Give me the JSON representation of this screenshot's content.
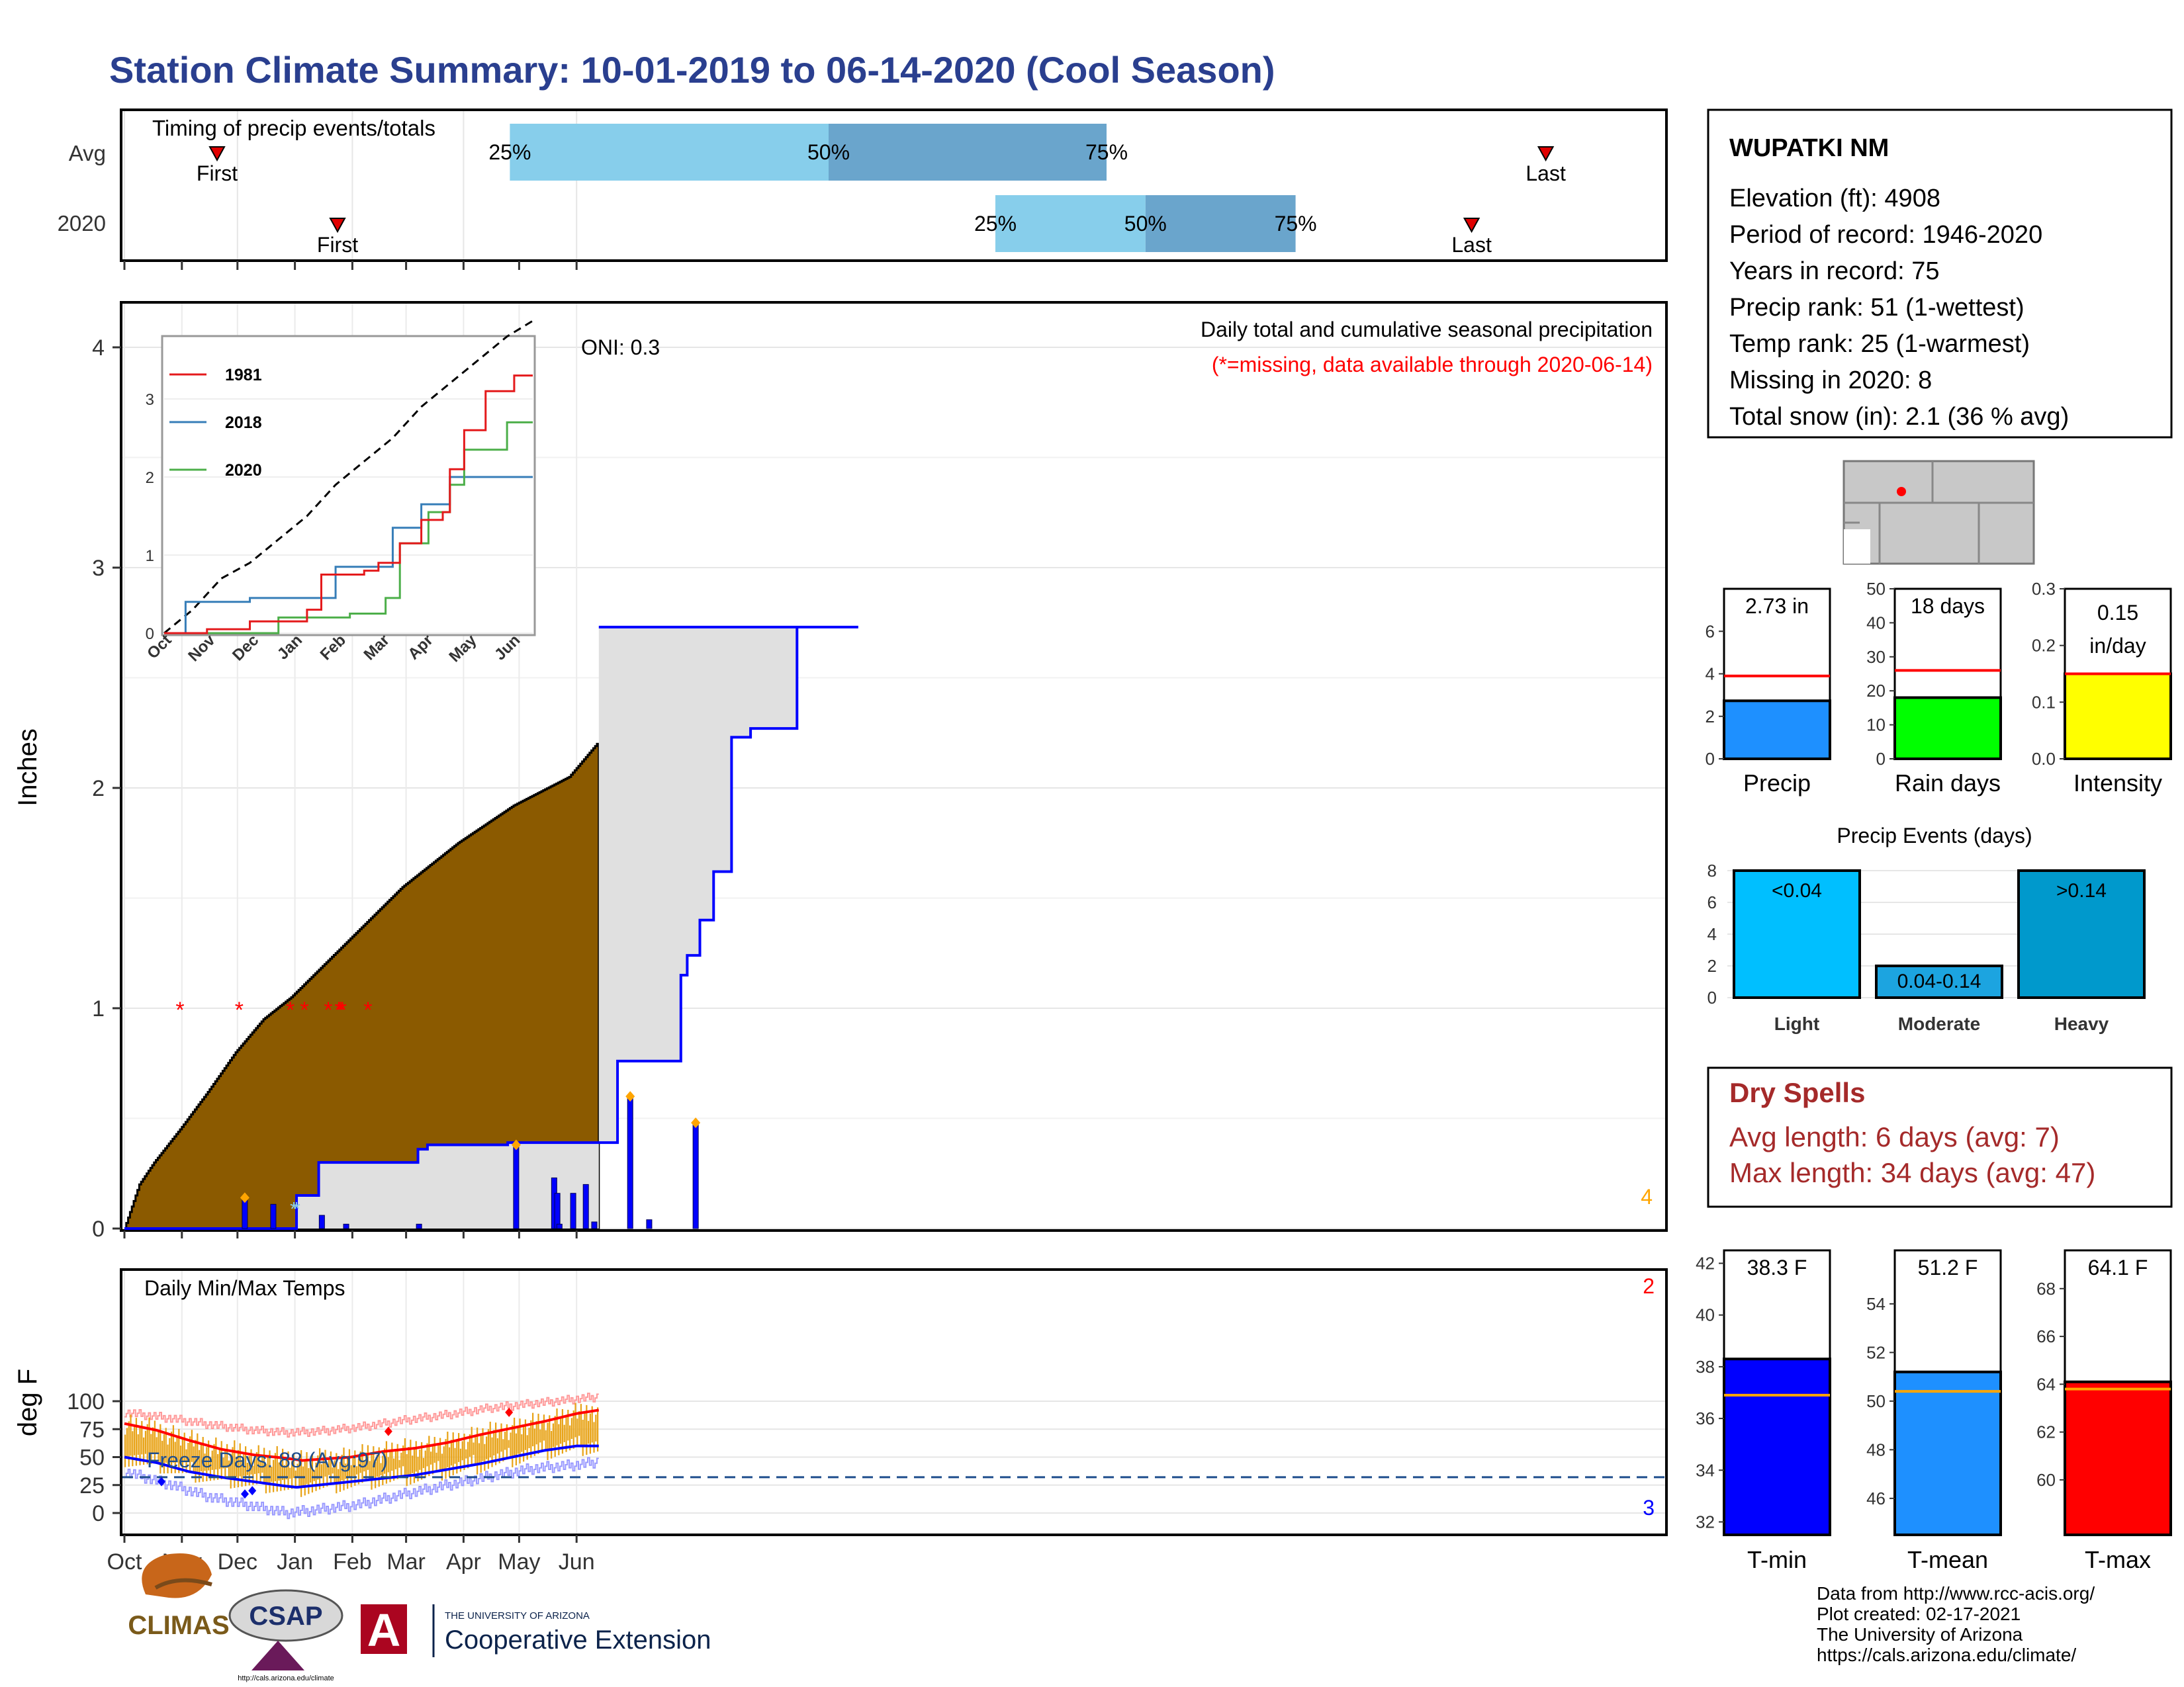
{
  "title": "Station Climate Summary: 10-01-2019 to 06-14-2020 (Cool Season)",
  "colors": {
    "title": "#2a3f8f",
    "precip_fill": "#8b5a00",
    "missing_star": "#ff0000",
    "daily_bar": "#0000ff",
    "avg_cum_line": "#0000ff",
    "avg_cum_fill": "#e0e0e0",
    "temp_bar": "#e8a317",
    "avg_max": "#ff0000",
    "avg_min": "#0000ff",
    "record_max": "#ff9999",
    "record_min": "#9999ff",
    "freeze_line": "#1f4e8c",
    "q_light": "#87ceeb",
    "q_dark": "#6aa5cc",
    "precip_box": "#1e90ff",
    "rain_days_box": "#00ff00",
    "intensity_box": "#ffff00",
    "light_bar": "#00bfff",
    "moderate_bar": "#1ca4e0",
    "heavy_bar": "#0099cc",
    "dry_spells": "#a52a2a",
    "tmin_box": "#0000ff",
    "tmean_box": "#1e90ff",
    "tmax_box": "#ff0000",
    "normal_line": "#ffa500",
    "series_1981": "#e41a1c",
    "series_2018": "#377eb8",
    "series_2020": "#4daf4a"
  },
  "months": [
    "Oct",
    "Nov",
    "Dec",
    "Jan",
    "Feb",
    "Mar",
    "Apr",
    "May",
    "Jun"
  ],
  "timing": {
    "title": "Timing of precip events/totals",
    "rows": [
      {
        "label": "Avg",
        "first_day": 50,
        "last_day": 767,
        "q25_day": 208,
        "q50_day": 380,
        "q75_day": 530,
        "first_label": "First",
        "last_label": "Last",
        "q25_label": "25%",
        "q50_label": "50%",
        "q75_label": "75%"
      },
      {
        "label": "2020",
        "first_day": 115,
        "last_day": 727,
        "q25_day": 470,
        "q50_day": 551,
        "q75_day": 632,
        "first_label": "First",
        "last_label": "Last",
        "q25_label": "25%",
        "q50_label": "50%",
        "q75_label": "75%"
      }
    ]
  },
  "precip_panel": {
    "ylabel": "Inches",
    "yticks": [
      "0",
      "1",
      "2",
      "3",
      "4"
    ],
    "oni": "ONI: 0.3",
    "note1": "Daily total and cumulative seasonal precipitation",
    "note2": "(*=missing, data available through 2020-06-14)",
    "corner_count": "4",
    "cum_points": [
      [
        0,
        0
      ],
      [
        8,
        0.2
      ],
      [
        16,
        0.3
      ],
      [
        30,
        0.45
      ],
      [
        45,
        0.62
      ],
      [
        60,
        0.8
      ],
      [
        75,
        0.95
      ],
      [
        90,
        1.05
      ],
      [
        120,
        1.3
      ],
      [
        150,
        1.55
      ],
      [
        180,
        1.75
      ],
      [
        210,
        1.92
      ],
      [
        240,
        2.05
      ],
      [
        260,
        2.25
      ],
      [
        275,
        2.35
      ],
      [
        300,
        2.58
      ],
      [
        330,
        2.72
      ],
      [
        360,
        2.98
      ],
      [
        390,
        3.22
      ],
      [
        420,
        3.4
      ],
      [
        450,
        3.55
      ],
      [
        480,
        3.7
      ],
      [
        510,
        3.76
      ],
      [
        540,
        3.82
      ],
      [
        568,
        3.88
      ],
      [
        574,
        3.92
      ]
    ],
    "avg_cum_steps": [
      [
        0,
        0
      ],
      [
        163,
        0.15
      ],
      [
        184,
        0.3
      ],
      [
        278,
        0.36
      ],
      [
        287,
        0.38
      ],
      [
        363,
        0.39
      ],
      [
        467,
        0.39
      ],
      [
        467,
        0.76
      ],
      [
        525,
        0.76
      ],
      [
        527,
        1.15
      ],
      [
        533,
        1.24
      ],
      [
        545,
        1.24
      ],
      [
        545,
        1.4
      ],
      [
        558,
        1.4
      ],
      [
        558,
        1.62
      ],
      [
        575,
        1.62
      ],
      [
        575,
        2.23
      ],
      [
        593,
        2.23
      ],
      [
        593,
        2.27
      ],
      [
        637,
        2.27
      ],
      [
        637,
        2.73
      ],
      [
        695,
        2.73
      ]
    ],
    "daily_bars": [
      [
        114,
        0.14
      ],
      [
        141,
        0.11
      ],
      [
        187,
        0.06
      ],
      [
        210,
        0.02
      ],
      [
        279,
        0.02
      ],
      [
        371,
        0.38
      ],
      [
        407,
        0.23
      ],
      [
        410,
        0.16
      ],
      [
        412,
        0.02
      ],
      [
        425,
        0.16
      ],
      [
        437,
        0.2
      ],
      [
        445,
        0.03
      ],
      [
        479,
        0.6
      ],
      [
        497,
        0.04
      ],
      [
        541,
        0.48
      ]
    ],
    "event_marks": [
      114,
      371,
      479,
      541
    ],
    "missing_days": [
      63,
      130,
      188,
      204,
      231,
      243,
      245,
      247,
      276
    ],
    "snow_days": [
      192,
      195
    ]
  },
  "inset": {
    "ticks": [
      "0",
      "1",
      "2",
      "3"
    ],
    "months": [
      "Oct",
      "Nov",
      "Dec",
      "Jan",
      "Feb",
      "Mar",
      "Apr",
      "May",
      "Jun"
    ],
    "legend": [
      "1981",
      "2018",
      "2020"
    ],
    "avg_line": [
      [
        0,
        0
      ],
      [
        20,
        0.3
      ],
      [
        40,
        0.7
      ],
      [
        60,
        0.9
      ],
      [
        80,
        1.2
      ],
      [
        100,
        1.5
      ],
      [
        120,
        1.9
      ],
      [
        140,
        2.2
      ],
      [
        160,
        2.5
      ],
      [
        180,
        2.9
      ],
      [
        200,
        3.2
      ],
      [
        220,
        3.5
      ],
      [
        240,
        3.8
      ],
      [
        258,
        4.0
      ]
    ],
    "s1981": [
      [
        0,
        0
      ],
      [
        30,
        0.05
      ],
      [
        60,
        0.15
      ],
      [
        100,
        0.3
      ],
      [
        110,
        0.75
      ],
      [
        140,
        0.8
      ],
      [
        150,
        0.9
      ],
      [
        165,
        1.15
      ],
      [
        180,
        1.45
      ],
      [
        195,
        1.55
      ],
      [
        200,
        2.1
      ],
      [
        210,
        2.6
      ],
      [
        225,
        3.1
      ],
      [
        245,
        3.3
      ],
      [
        258,
        3.3
      ]
    ],
    "s2018": [
      [
        0,
        0
      ],
      [
        15,
        0.4
      ],
      [
        60,
        0.45
      ],
      [
        100,
        0.45
      ],
      [
        120,
        0.85
      ],
      [
        160,
        1.35
      ],
      [
        180,
        1.65
      ],
      [
        200,
        2.0
      ],
      [
        258,
        2.0
      ]
    ],
    "s2020": [
      [
        0,
        0
      ],
      [
        80,
        0.2
      ],
      [
        130,
        0.25
      ],
      [
        155,
        0.45
      ],
      [
        165,
        1.15
      ],
      [
        185,
        1.55
      ],
      [
        200,
        1.9
      ],
      [
        210,
        2.35
      ],
      [
        240,
        2.7
      ],
      [
        258,
        2.7
      ]
    ]
  },
  "temp_panel": {
    "title": "Daily Min/Max Temps",
    "ylabel": "deg F",
    "yticks": [
      "0",
      "25",
      "50",
      "75",
      "100"
    ],
    "freeze_label": "Freeze Days: 88 (Avg:97)",
    "freeze_temp": 32,
    "record_high_count": "2",
    "record_low_count": "3",
    "avg_max": [
      [
        0,
        80
      ],
      [
        30,
        74
      ],
      [
        60,
        65
      ],
      [
        90,
        57
      ],
      [
        120,
        52
      ],
      [
        150,
        49
      ],
      [
        165,
        47
      ],
      [
        180,
        48
      ],
      [
        210,
        50
      ],
      [
        240,
        55
      ],
      [
        270,
        58
      ],
      [
        300,
        63
      ],
      [
        330,
        70
      ],
      [
        360,
        76
      ],
      [
        390,
        82
      ],
      [
        420,
        89
      ],
      [
        440,
        92
      ]
    ],
    "avg_min": [
      [
        0,
        50
      ],
      [
        30,
        45
      ],
      [
        60,
        37
      ],
      [
        90,
        32
      ],
      [
        120,
        28
      ],
      [
        150,
        24
      ],
      [
        160,
        23
      ],
      [
        180,
        25
      ],
      [
        210,
        28
      ],
      [
        240,
        31
      ],
      [
        270,
        34
      ],
      [
        300,
        39
      ],
      [
        330,
        44
      ],
      [
        360,
        50
      ],
      [
        390,
        56
      ],
      [
        420,
        60
      ],
      [
        440,
        60
      ]
    ],
    "rec_max": [
      [
        0,
        90
      ],
      [
        40,
        85
      ],
      [
        80,
        79
      ],
      [
        120,
        74
      ],
      [
        150,
        72
      ],
      [
        180,
        73
      ],
      [
        220,
        77
      ],
      [
        260,
        83
      ],
      [
        300,
        88
      ],
      [
        340,
        94
      ],
      [
        380,
        98
      ],
      [
        420,
        102
      ],
      [
        440,
        104
      ]
    ],
    "rec_min": [
      [
        0,
        37
      ],
      [
        40,
        26
      ],
      [
        80,
        14
      ],
      [
        120,
        6
      ],
      [
        150,
        0
      ],
      [
        180,
        3
      ],
      [
        220,
        8
      ],
      [
        260,
        17
      ],
      [
        300,
        25
      ],
      [
        340,
        33
      ],
      [
        380,
        40
      ],
      [
        420,
        43
      ],
      [
        440,
        46
      ]
    ],
    "record_high_markers": [
      [
        357,
        90
      ],
      [
        245,
        73
      ]
    ],
    "record_low_markers": [
      [
        20,
        28
      ],
      [
        65,
        17
      ],
      [
        69,
        20
      ]
    ]
  },
  "station": {
    "name": "WUPATKI NM",
    "lines": [
      "Elevation (ft): 4908",
      "Period of record: 1946-2020",
      "Years in record: 75",
      "Precip rank: 51 (1-wettest)",
      "Temp rank: 25 (1-warmest)",
      "Missing in 2020: 8",
      "Total snow (in): 2.1 (36 % avg)"
    ]
  },
  "bar_stats": [
    {
      "label": "Precip",
      "value_label": "2.73 in",
      "value": 2.73,
      "avg": 3.9,
      "ymax": 8,
      "ticks": [
        "0",
        "2",
        "4",
        "6"
      ]
    },
    {
      "label": "Rain days",
      "value_label": "18 days",
      "value": 18,
      "avg": 26,
      "ymax": 50,
      "ticks": [
        "0",
        "10",
        "20",
        "30",
        "40",
        "50"
      ]
    },
    {
      "label": "Intensity",
      "value_label_1": "0.15",
      "value_label_2": "in/day",
      "value": 0.15,
      "avg": 0.15,
      "ymax": 0.3,
      "ticks": [
        "0.0",
        "0.1",
        "0.2",
        "0.3"
      ]
    }
  ],
  "precip_events": {
    "title": "Precip Events (days)",
    "ticks": [
      "0",
      "2",
      "4",
      "6",
      "8"
    ],
    "bars": [
      {
        "label": "Light",
        "range": "<0.04",
        "value": 8
      },
      {
        "label": "Moderate",
        "range": "0.04-0.14",
        "value": 2
      },
      {
        "label": "Heavy",
        "range": ">0.14",
        "value": 8
      }
    ]
  },
  "dry_spells": {
    "title": "Dry Spells",
    "avg": "Avg length: 6 days (avg: 7)",
    "max": "Max length: 34 days (avg: 47)"
  },
  "temp_stats": [
    {
      "label": "T-min",
      "value_label": "38.3 F",
      "value": 38.3,
      "avg": 36.9,
      "ymin": 31.5,
      "ymax": 42.5,
      "ticks": [
        "32",
        "34",
        "36",
        "38",
        "40",
        "42"
      ]
    },
    {
      "label": "T-mean",
      "value_label": "51.2 F",
      "value": 51.2,
      "avg": 50.4,
      "ymin": 44.5,
      "ymax": 56.2,
      "ticks": [
        "46",
        "48",
        "50",
        "52",
        "54"
      ]
    },
    {
      "label": "T-max",
      "value_label": "64.1 F",
      "value": 64.1,
      "avg": 63.8,
      "ymin": 57.7,
      "ymax": 69.6,
      "ticks": [
        "60",
        "62",
        "64",
        "66",
        "68"
      ]
    }
  ],
  "footer": {
    "credits": [
      "Data from http://www.rcc-acis.org/",
      "Plot created: 02-17-2021",
      "The University of Arizona",
      "https://cals.arizona.edu/climate/"
    ],
    "climas": "CLIMAS",
    "csap": "CSAP",
    "csap_url": "http://cals.arizona.edu/climate",
    "ua_small": "THE UNIVERSITY OF ARIZONA",
    "ua_large": "Cooperative Extension",
    "ua_letter": "A"
  }
}
